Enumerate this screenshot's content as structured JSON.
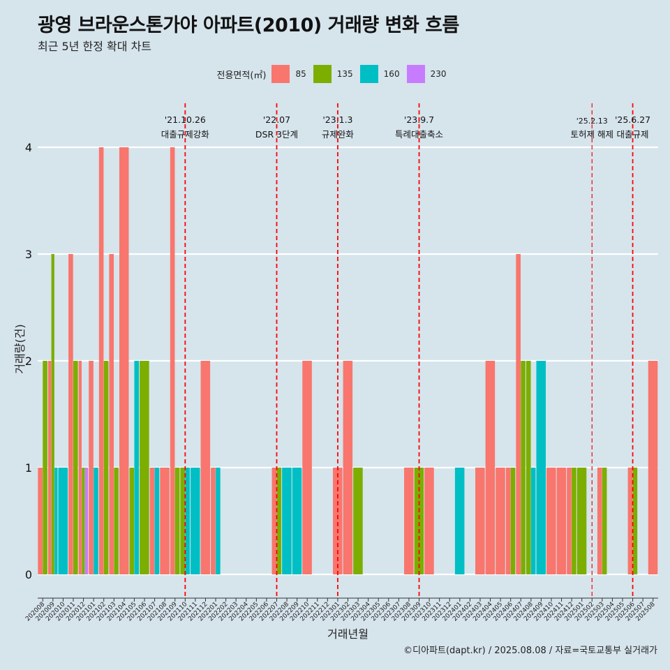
{
  "title": "광영 브라운스톤가야 아파트(2010) 거래량 변화 흐름",
  "subtitle": "최근 5년 한정 확대 차트",
  "caption": "©디아파트(dapt.kr) / 2025.08.08 / 자료=국토교통부 실거래가",
  "legend": {
    "title": "전용면적(㎡)",
    "items": [
      {
        "label": "85",
        "color": "#F8766D"
      },
      {
        "label": "135",
        "color": "#7CAE00"
      },
      {
        "label": "160",
        "color": "#00BFC4"
      },
      {
        "label": "230",
        "color": "#C77CFF"
      }
    ]
  },
  "chart_data": {
    "type": "bar",
    "xlabel": "거래년월",
    "ylabel": "거래량(건)",
    "ylim": [
      0,
      4
    ],
    "yticks": [
      0,
      1,
      2,
      3,
      4
    ],
    "grid": true,
    "legend_position": "top",
    "categories": [
      "202008",
      "202009",
      "202010",
      "202011",
      "202012",
      "202101",
      "202102",
      "202103",
      "202104",
      "202105",
      "202106",
      "202107",
      "202108",
      "202109",
      "202110",
      "202111",
      "202112",
      "202201",
      "202202",
      "202203",
      "202204",
      "202205",
      "202206",
      "202207",
      "202208",
      "202209",
      "202210",
      "202211",
      "202212",
      "202301",
      "202302",
      "202303",
      "202304",
      "202305",
      "202306",
      "202307",
      "202308",
      "202309",
      "202310",
      "202311",
      "202312",
      "202401",
      "202402",
      "202403",
      "202404",
      "202405",
      "202406",
      "202407",
      "202408",
      "202409",
      "202410",
      "202411",
      "202412",
      "202501",
      "202502",
      "202503",
      "202504",
      "202505",
      "202506",
      "202507",
      "202508"
    ],
    "series": [
      {
        "name": "85",
        "color": "#F8766D",
        "values": [
          1,
          2,
          0,
          3,
          2,
          2,
          4,
          3,
          4,
          0,
          0,
          1,
          1,
          4,
          0,
          0,
          2,
          1,
          0,
          0,
          0,
          0,
          0,
          1,
          0,
          0,
          2,
          0,
          0,
          1,
          2,
          0,
          0,
          0,
          0,
          0,
          1,
          0,
          1,
          0,
          0,
          0,
          0,
          1,
          2,
          1,
          1,
          3,
          0,
          0,
          1,
          1,
          1,
          0,
          0,
          1,
          0,
          0,
          1,
          0,
          2
        ]
      },
      {
        "name": "135",
        "color": "#7CAE00",
        "values": [
          2,
          3,
          0,
          2,
          1,
          0,
          2,
          1,
          0,
          1,
          2,
          0,
          0,
          1,
          1,
          0,
          0,
          0,
          0,
          0,
          0,
          0,
          0,
          1,
          0,
          0,
          0,
          0,
          0,
          0,
          0,
          1,
          0,
          0,
          0,
          0,
          0,
          1,
          0,
          0,
          0,
          0,
          0,
          0,
          0,
          0,
          1,
          2,
          2,
          0,
          0,
          0,
          1,
          1,
          0,
          1,
          0,
          0,
          1,
          0,
          0
        ]
      },
      {
        "name": "160",
        "color": "#00BFC4",
        "values": [
          0,
          1,
          1,
          0,
          0,
          1,
          0,
          0,
          0,
          2,
          0,
          1,
          0,
          0,
          1,
          1,
          0,
          1,
          0,
          0,
          0,
          0,
          0,
          0,
          1,
          1,
          0,
          0,
          0,
          0,
          0,
          0,
          0,
          0,
          0,
          0,
          0,
          0,
          0,
          0,
          0,
          1,
          0,
          0,
          0,
          0,
          0,
          0,
          1,
          2,
          0,
          0,
          0,
          0,
          0,
          0,
          0,
          0,
          0,
          0,
          0
        ]
      },
      {
        "name": "230",
        "color": "#C77CFF",
        "values": [
          0,
          0,
          0,
          0,
          1,
          0,
          0,
          0,
          0,
          0,
          0,
          0,
          0,
          0,
          0,
          0,
          0,
          0,
          0,
          0,
          0,
          0,
          0,
          0,
          0,
          0,
          0,
          0,
          0,
          0,
          0,
          0,
          0,
          0,
          0,
          0,
          0,
          0,
          0,
          0,
          0,
          0,
          0,
          0,
          0,
          0,
          0,
          0,
          0,
          0,
          0,
          0,
          0,
          0,
          0,
          0,
          0,
          0,
          0,
          0,
          0
        ]
      }
    ],
    "events": [
      {
        "date": "'21.10.26",
        "label": "대출규제강화",
        "x": "202110"
      },
      {
        "date": "'22.07",
        "label": "DSR 3단계",
        "x": "202207"
      },
      {
        "date": "'23.1.3",
        "label": "규제완화",
        "x": "202301"
      },
      {
        "date": "'23.9.7",
        "label": "특례대출축소",
        "x": "202309"
      },
      {
        "date": "'25.2.13",
        "label": "토허제 해제",
        "x": "202502"
      },
      {
        "date": "'25.6.27",
        "label": "대출규제",
        "x": "202506"
      }
    ]
  }
}
